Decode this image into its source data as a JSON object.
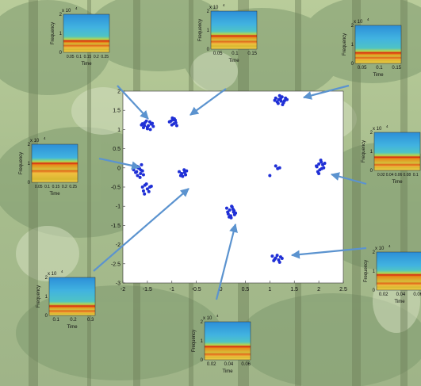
{
  "colors": {
    "point": "#1f2fd6",
    "arrow": "#5b93cf",
    "spec_background": "#31a6d8",
    "spec_band": "#d9260e"
  },
  "chart_data": [
    {
      "type": "scatter",
      "role": "main",
      "title": "",
      "xlabel": "",
      "ylabel": "",
      "xlim": [
        -2,
        2.5
      ],
      "ylim": [
        -3,
        2
      ],
      "xticks": [
        "-2",
        "-1.5",
        "-1",
        "-0.5",
        "0",
        "0.5",
        "1",
        "1.5",
        "2",
        "2.5"
      ],
      "yticks": [
        "2",
        "1.5",
        "1",
        "0.5",
        "0",
        "-0.5",
        "-1",
        "-1.5",
        "-2",
        "-2.5",
        "-3"
      ],
      "grid": false,
      "clusters": [
        {
          "x": [
            -1.62,
            -1.55,
            -1.48,
            -1.42,
            -1.58,
            -1.5,
            -1.45,
            -1.38,
            -1.6,
            -1.52,
            -1.44,
            -1.56,
            -1.4,
            -1.5
          ],
          "y": [
            1.12,
            1.18,
            1.1,
            1.14,
            1.05,
            1.02,
            1.2,
            1.08,
            1.15,
            1.22,
            1.0,
            1.1,
            1.16,
            1.06
          ]
        },
        {
          "x": [
            -1.05,
            -0.98,
            -0.92,
            -1.0,
            -0.95,
            -0.9,
            -1.02,
            -0.96,
            -0.93,
            -0.99
          ],
          "y": [
            1.2,
            1.25,
            1.18,
            1.12,
            1.28,
            1.1,
            1.22,
            1.15,
            1.24,
            1.3
          ]
        },
        {
          "x": [
            1.12,
            1.18,
            1.25,
            1.3,
            1.15,
            1.22,
            1.28,
            1.2,
            1.35,
            1.1,
            1.26,
            1.32,
            1.17,
            1.23
          ],
          "y": [
            1.82,
            1.78,
            1.85,
            1.75,
            1.72,
            1.8,
            1.7,
            1.88,
            1.78,
            1.76,
            1.65,
            1.82,
            1.68,
            1.74
          ]
        },
        {
          "x": [
            -1.78,
            -1.72,
            -1.68,
            -1.64,
            -1.75,
            -1.6,
            -1.7,
            -1.66,
            -1.62,
            -1.74,
            -1.58,
            -1.69,
            -1.65,
            -1.71,
            -1.63
          ],
          "y": [
            -0.05,
            -0.1,
            0.02,
            -0.15,
            0.05,
            -0.08,
            -0.2,
            -0.02,
            0.08,
            -0.12,
            -0.18,
            0.0,
            -0.25,
            0.04,
            -0.06
          ]
        },
        {
          "x": [
            -1.6,
            -1.55,
            -1.5,
            -1.45,
            -1.58,
            -1.52,
            -1.47,
            -1.42,
            -1.56
          ],
          "y": [
            -0.5,
            -0.45,
            -0.55,
            -0.5,
            -0.6,
            -0.42,
            -0.62,
            -0.48,
            -0.68
          ]
        },
        {
          "x": [
            -0.85,
            -0.8,
            -0.75,
            -0.72,
            -0.78,
            -0.82,
            -0.74,
            -0.7
          ],
          "y": [
            -0.1,
            -0.15,
            -0.05,
            -0.18,
            -0.22,
            -0.2,
            -0.12,
            -0.08
          ]
        },
        {
          "x": [
            0.12,
            0.18,
            0.22,
            0.26,
            0.15,
            0.2,
            0.25,
            0.3,
            0.17,
            0.23,
            0.28,
            0.21,
            0.14,
            0.27
          ],
          "y": [
            -1.05,
            -1.1,
            -1.0,
            -1.15,
            -1.2,
            -1.25,
            -1.08,
            -1.18,
            -1.28,
            -1.02,
            -1.22,
            -1.3,
            -1.15,
            -1.12
          ]
        },
        {
          "x": [
            1.05,
            1.12,
            1.18,
            1.22,
            1.08,
            1.15,
            1.2,
            1.1,
            1.25
          ],
          "y": [
            -2.3,
            -2.35,
            -2.4,
            -2.32,
            -2.42,
            -2.28,
            -2.46,
            -2.38,
            -2.36
          ]
        },
        {
          "x": [
            1.0,
            1.12,
            1.16,
            1.2
          ],
          "y": [
            -0.2,
            0.05,
            -0.02,
            0.0
          ]
        },
        {
          "x": [
            1.95,
            2.0,
            2.05,
            2.1,
            2.02,
            2.08,
            1.98,
            2.12,
            2.04,
            2.0,
            2.06,
            1.96
          ],
          "y": [
            0.05,
            0.1,
            0.15,
            0.0,
            -0.05,
            0.08,
            -0.1,
            0.12,
            0.2,
            -0.15,
            -0.02,
            0.03
          ]
        }
      ]
    },
    {
      "type": "heatmap",
      "role": "inset",
      "id": "inset-1",
      "exponent": "x 10",
      "exponent_power": "4",
      "ylabel": "Frequency",
      "xlabel": "Time",
      "yticks": [
        "2",
        "1",
        "0"
      ],
      "xticks": [
        "0.05",
        "0.1",
        "0.15",
        "0.2",
        "0.25"
      ],
      "band_level": 0.3,
      "band2_level": 0.18
    },
    {
      "type": "heatmap",
      "role": "inset",
      "id": "inset-2",
      "exponent": "x 10",
      "exponent_power": "4",
      "ylabel": "Frequency",
      "xlabel": "Time",
      "yticks": [
        "2",
        "1",
        "0"
      ],
      "xticks": [
        "0.05",
        "0.1",
        "0.15"
      ],
      "band_level": 0.35,
      "band2_level": 0.2
    },
    {
      "type": "heatmap",
      "role": "inset",
      "id": "inset-3",
      "exponent": "x 10",
      "exponent_power": "4",
      "ylabel": "Frequency",
      "xlabel": "Time",
      "yticks": [
        "2",
        "1",
        "0"
      ],
      "xticks": [
        "0.05",
        "0.1",
        "0.15"
      ],
      "band_level": 0.28,
      "band2_level": 0.15
    },
    {
      "type": "heatmap",
      "role": "inset",
      "id": "inset-4",
      "exponent": "x 10",
      "exponent_power": "4",
      "ylabel": "Frequency",
      "xlabel": "Time",
      "yticks": [
        "2",
        "1",
        "0"
      ],
      "xticks": [
        "0.05",
        "0.1",
        "0.15",
        "0.2",
        "0.25"
      ],
      "band_level": 0.5,
      "band2_level": 0.3
    },
    {
      "type": "heatmap",
      "role": "inset",
      "id": "inset-5",
      "exponent": "x 10",
      "exponent_power": "4",
      "ylabel": "Frequency",
      "xlabel": "Time",
      "yticks": [
        "2",
        "1",
        "0"
      ],
      "xticks": [
        "0.02",
        "0.04",
        "0.06",
        "0.08",
        "0.1"
      ],
      "band_level": 0.35,
      "band2_level": 0.15
    },
    {
      "type": "heatmap",
      "role": "inset",
      "id": "inset-6",
      "exponent": "x 10",
      "exponent_power": "4",
      "ylabel": "Frequency",
      "xlabel": "Time",
      "yticks": [
        "2",
        "1",
        "0"
      ],
      "xticks": [
        "0.1",
        "0.2",
        "0.3"
      ],
      "band_level": 0.25,
      "band2_level": 0.12
    },
    {
      "type": "heatmap",
      "role": "inset",
      "id": "inset-7",
      "exponent": "x 10",
      "exponent_power": "4",
      "ylabel": "Frequency",
      "xlabel": "Time",
      "yticks": [
        "2",
        "1",
        "0"
      ],
      "xticks": [
        "0.02",
        "0.04",
        "0.06"
      ],
      "band_level": 0.4,
      "band2_level": 0.18
    },
    {
      "type": "heatmap",
      "role": "inset",
      "id": "inset-8",
      "exponent": "x 10",
      "exponent_power": "4",
      "ylabel": "Frequency",
      "xlabel": "Time",
      "yticks": [
        "2",
        "1",
        "0"
      ],
      "xticks": [
        "0.02",
        "0.04",
        "0.06"
      ],
      "band_level": 0.35,
      "band2_level": 0.15
    }
  ]
}
